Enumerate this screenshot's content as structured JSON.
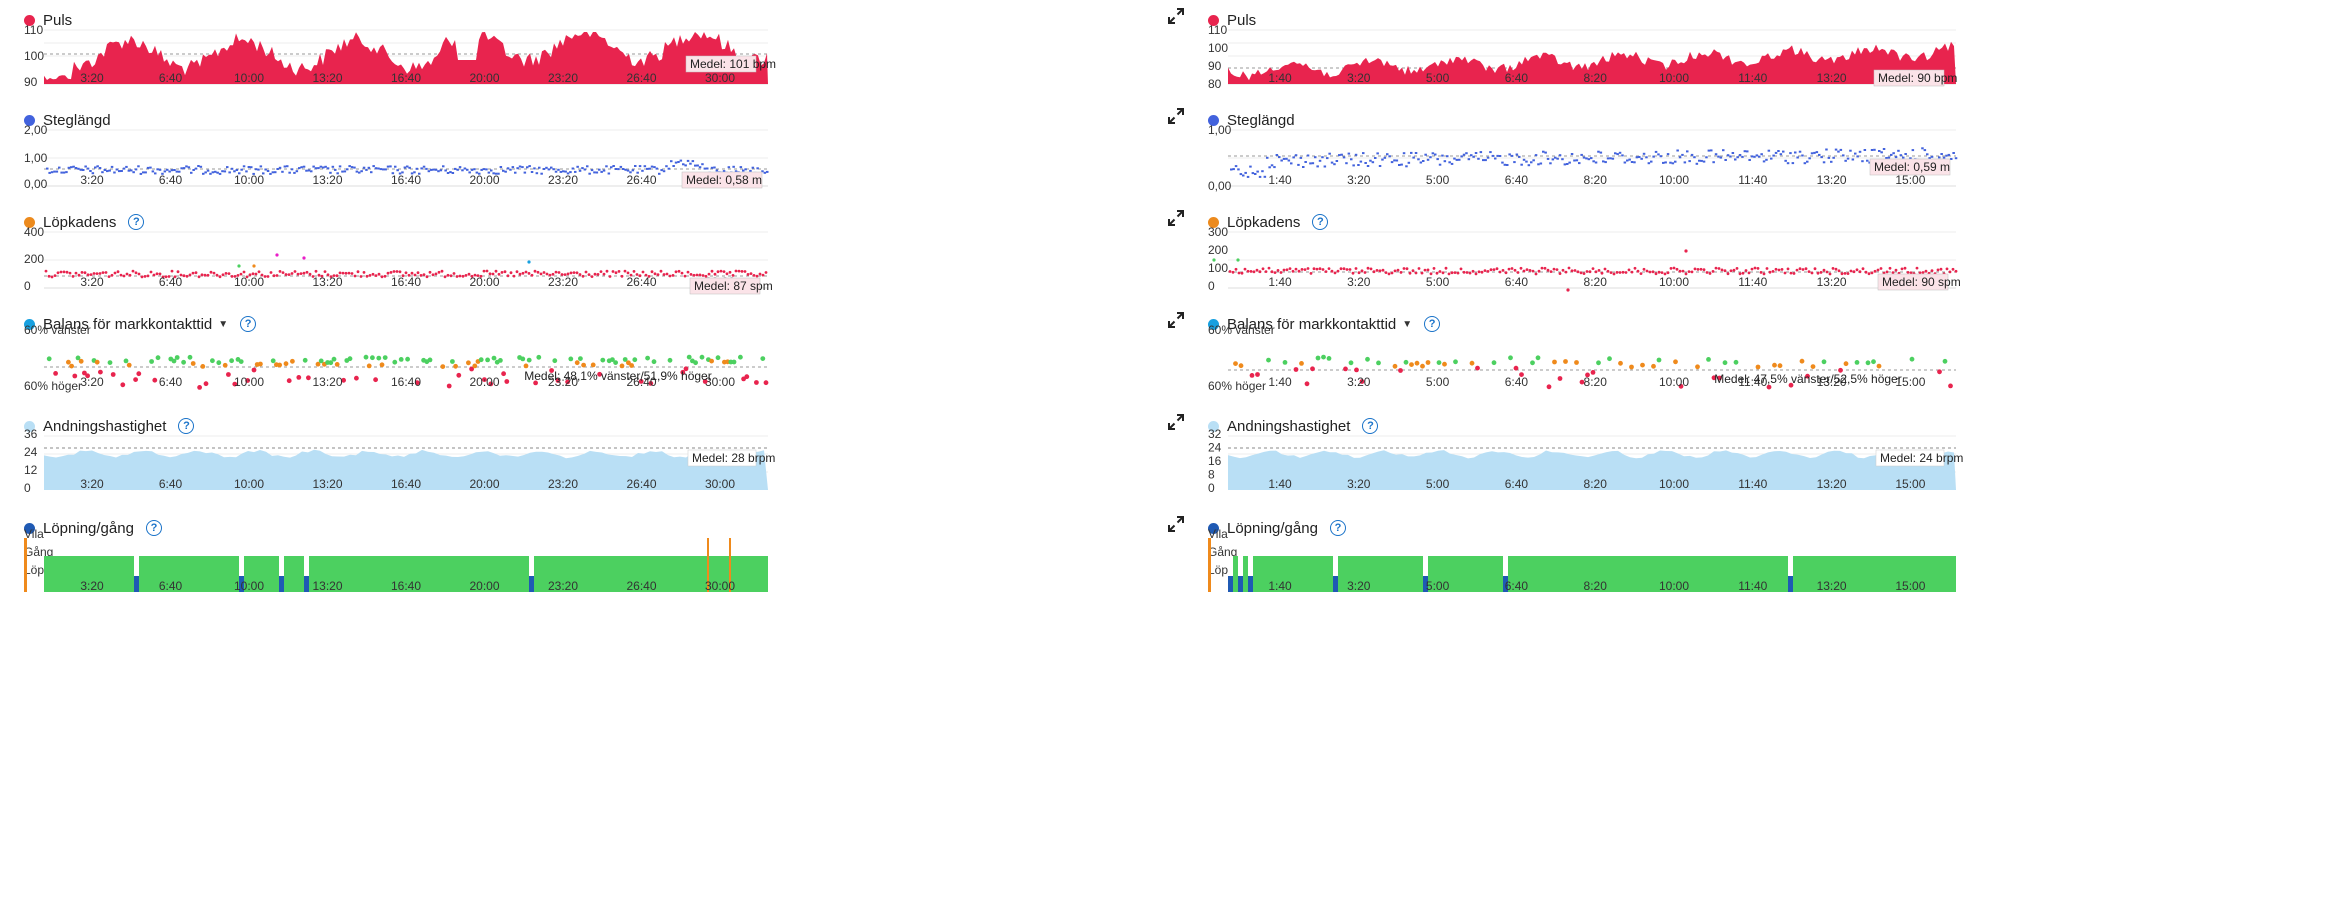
{
  "colors": {
    "puls": "#e8244e",
    "steg": "#4262dd",
    "kadens": "#ec8a1d",
    "balans": "#17a0e0",
    "andning": "#b9dff5",
    "lopning": "#1f5ab4",
    "green": "#4cd060",
    "orange": "#ef8a1c",
    "red": "#e8244e"
  },
  "icons": {
    "expand": "expand-icon",
    "help": "help-icon",
    "dropdown": "chevron-down-icon"
  },
  "left": {
    "x_ticks": [
      "3:20",
      "6:40",
      "10:00",
      "13:20",
      "16:40",
      "20:00",
      "23:20",
      "26:40",
      "30:00"
    ],
    "puls": {
      "title": "Puls",
      "y_ticks": [
        "110",
        "100",
        "90"
      ],
      "avg": "Medel: 101 bpm"
    },
    "steg": {
      "title": "Steglängd",
      "y_ticks": [
        "2,00",
        "1,00",
        "0,00"
      ],
      "avg": "Medel: 0,58 m"
    },
    "kadens": {
      "title": "Löpkadens",
      "y_ticks": [
        "400",
        "200",
        "0"
      ],
      "avg": "Medel: 87 spm"
    },
    "balans": {
      "title": "Balans för markkontakttid",
      "y_top": "60% vänster",
      "y_bottom": "60% höger",
      "avg": "Medel: 48,1% vänster/51,9% höger"
    },
    "andning": {
      "title": "Andningshastighet",
      "y_ticks": [
        "36",
        "24",
        "12",
        "0"
      ],
      "avg": "Medel: 28 brpm"
    },
    "lopning": {
      "title": "Löpning/gång",
      "y_ticks": [
        "Vila",
        "Gång",
        "Löpning"
      ]
    }
  },
  "right": {
    "x_ticks": [
      "1:40",
      "3:20",
      "5:00",
      "6:40",
      "8:20",
      "10:00",
      "11:40",
      "13:20",
      "15:00"
    ],
    "puls": {
      "title": "Puls",
      "y_ticks": [
        "110",
        "100",
        "90",
        "80"
      ],
      "avg": "Medel: 90 bpm"
    },
    "steg": {
      "title": "Steglängd",
      "y_ticks": [
        "1,00",
        "0,00"
      ],
      "avg": "Medel: 0,59 m"
    },
    "kadens": {
      "title": "Löpkadens",
      "y_ticks": [
        "300",
        "200",
        "100",
        "0"
      ],
      "avg": "Medel: 90 spm"
    },
    "balans": {
      "title": "Balans för markkontakttid",
      "y_top": "60% vänster",
      "y_bottom": "60% höger",
      "avg": "Medel: 47,5% vänster/52,5% höger"
    },
    "andning": {
      "title": "Andningshastighet",
      "y_ticks": [
        "32",
        "24",
        "16",
        "8",
        "0"
      ],
      "avg": "Medel: 24 brpm"
    },
    "lopning": {
      "title": "Löpning/gång",
      "y_ticks": [
        "Vila",
        "Gång",
        "Löpning"
      ]
    }
  }
}
